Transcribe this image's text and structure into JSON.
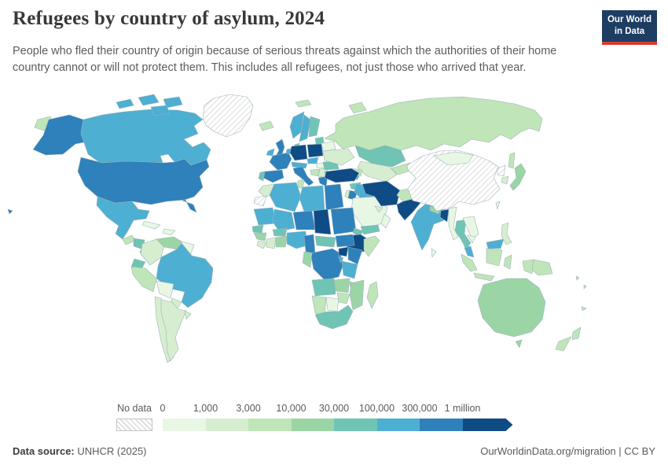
{
  "header": {
    "title": "Refugees by country of asylum, 2024",
    "subtitle": "People who fled their country of origin because of serious threats against which the authorities of their home country cannot or will not protect them. This includes all refugees, not just those who arrived that year.",
    "logo": {
      "line1": "Our World",
      "line2": "in Data",
      "bg_color": "#1d3d63",
      "accent_color": "#d93a2d"
    }
  },
  "legend": {
    "no_data_label": "No data",
    "tick_labels": [
      "0",
      "1,000",
      "3,000",
      "10,000",
      "30,000",
      "100,000",
      "300,000",
      "1 million"
    ],
    "colors": [
      "#e8f6e4",
      "#d6eecf",
      "#c0e5b8",
      "#9bd5a5",
      "#6fc4b4",
      "#4dafd2",
      "#2e81ba",
      "#0f4c85"
    ]
  },
  "footer": {
    "source_label": "Data source:",
    "source_value": "UNHCR (2025)",
    "attribution": "OurWorldinData.org/migration | CC BY"
  },
  "map": {
    "ocean_color": "#ffffff",
    "border_color": "#9eb2bc",
    "no_data_pattern": "diagonal-hatch"
  },
  "chart_data": {
    "type": "heatmap",
    "subtype": "choropleth-world-map",
    "title": "Refugees by country of asylum, 2024",
    "unit": "refugees hosted",
    "bin_edges": [
      "0",
      "1,000",
      "3,000",
      "10,000",
      "30,000",
      "100,000",
      "300,000",
      "1 million"
    ],
    "bin_labels": [
      "0–1,000",
      "1,000–3,000",
      "3,000–10,000",
      "10,000–30,000",
      "30,000–100,000",
      "100,000–300,000",
      "300,000–1 million",
      "1 million+"
    ],
    "no_data_label": "No data",
    "regions": {
      "alaska": 6,
      "canada": 5,
      "arctic-1": 5,
      "arctic-2": 5,
      "arctic-3": 5,
      "arctic-4": 5,
      "greenland": null,
      "iceland": 2,
      "hawaii": 6,
      "usa": 6,
      "mexico": 5,
      "guatemala": 2,
      "honduras-nicaragua": 4,
      "costa-rica": 6,
      "panama": 4,
      "cuba": 0,
      "hispaniola": 0,
      "colombia": 1,
      "venezuela": 3,
      "guyanas": 0,
      "ecuador": 4,
      "peru": 2,
      "brazil": 5,
      "bolivia": 0,
      "paraguay": 1,
      "chile": 1,
      "argentina": 1,
      "uruguay": 1,
      "svalbard": 2,
      "ireland": 5,
      "uk": 6,
      "norway": 5,
      "sweden": 5,
      "finland": 4,
      "denmark": 4,
      "baltics": 4,
      "france": 6,
      "spain": 6,
      "portugal": 4,
      "benelux": 5,
      "germany": 7,
      "poland": 7,
      "czechia": 5,
      "austria-switzerland": 5,
      "italy": 6,
      "sicily": 6,
      "hungary": 0,
      "croatia-bosnia": 2,
      "serbia-macedonia": 1,
      "greece": 6,
      "bulgaria": 4,
      "romania": 4,
      "ukraine": 1,
      "belarus": 0,
      "russia": 2,
      "novaya-zemlya": 2,
      "sakhalin": 2,
      "chukotka-wrap": 2,
      "kazakhstan": 4,
      "uzbekistan-turkmenistan": 1,
      "kyrgyzstan-tajikistan": 2,
      "caucasus": 2,
      "armenia": 5,
      "turkey": 7,
      "syria": 4,
      "israel": 1,
      "jordan": 6,
      "iraq": 5,
      "saudi-arabia": 0,
      "yemen": 4,
      "oman": 0,
      "gulf-states": 1,
      "iran": 7,
      "afghanistan": 2,
      "pakistan": 7,
      "india": 5,
      "nepal": 3,
      "bangladesh": 7,
      "sri-lanka": 0,
      "myanmar": 0,
      "thailand": 4,
      "laos-vietnam": 0,
      "cambodia": 0,
      "malaysia-peninsula": 5,
      "malaysia-borneo": 5,
      "indonesia-sumatra": 2,
      "indonesia-java": 2,
      "indonesia-borneo": 2,
      "sulawesi": 2,
      "west-papua": 2,
      "papua-new-guinea": 2,
      "philippines": 1,
      "china": null,
      "mongolia": 0,
      "north-korea": null,
      "south-korea": 1,
      "japan": 3,
      "taiwan": 0,
      "morocco": 1,
      "western-sahara": null,
      "algeria": 5,
      "tunisia": 2,
      "libya": 5,
      "egypt": 6,
      "mauritania": 5,
      "mali": 5,
      "niger": 6,
      "chad": 7,
      "sudan": 6,
      "eritrea": 4,
      "ethiopia": 7,
      "somalia": 2,
      "senegal": 4,
      "guinea": 3,
      "sierra-leone-liberia": 1,
      "ivory-coast": 1,
      "ghana": 3,
      "burkina-faso": 4,
      "nigeria": 5,
      "cameroon": 6,
      "central-african-republic": 4,
      "south-sudan": 6,
      "dr-congo": 6,
      "congo-gabon": 3,
      "uganda": 7,
      "kenya": 6,
      "rwanda-burundi": 5,
      "tanzania": 5,
      "angola": 4,
      "zambia": 3,
      "malawi": 3,
      "mozambique": 3,
      "zimbabwe": 2,
      "botswana": 0,
      "namibia": 2,
      "south-africa": 4,
      "madagascar": 2,
      "australia": 3,
      "tasmania": 3,
      "new-zealand-north": 2,
      "new-zealand-south": 2,
      "solomon-islands": 2,
      "vanuatu": 2,
      "new-caledonia": 2
    }
  }
}
